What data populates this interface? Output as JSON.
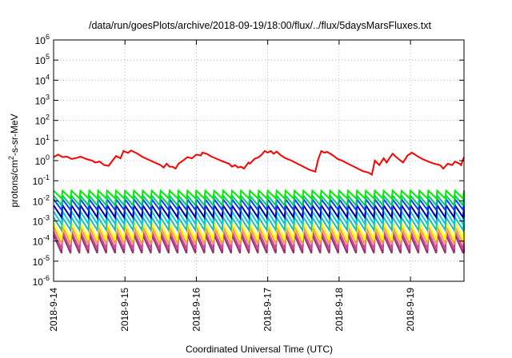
{
  "chart_data": {
    "type": "line",
    "title": "/data/run/goesPlots/archive/2018-09-19/18:00/flux/../flux/5daysMarsFluxes.txt",
    "xlabel": "Coordinated Universal Time (UTC)",
    "ylabel": "protons/cm2-s-sr-MeV",
    "yscale": "log",
    "ylim": [
      1e-06,
      1000000.0
    ],
    "yticks": [
      {
        "base": "10",
        "exp": "-6"
      },
      {
        "base": "10",
        "exp": "-5"
      },
      {
        "base": "10",
        "exp": "-4"
      },
      {
        "base": "10",
        "exp": "-3"
      },
      {
        "base": "10",
        "exp": "-2"
      },
      {
        "base": "10",
        "exp": "-1"
      },
      {
        "base": "10",
        "exp": "0"
      },
      {
        "base": "10",
        "exp": "1"
      },
      {
        "base": "10",
        "exp": "2"
      },
      {
        "base": "10",
        "exp": "3"
      },
      {
        "base": "10",
        "exp": "4"
      },
      {
        "base": "10",
        "exp": "5"
      },
      {
        "base": "10",
        "exp": "6"
      }
    ],
    "xlim": [
      "2018-09-14",
      "2018-09-19T18:00"
    ],
    "xticks": [
      "2018-9-14",
      "2018-9-15",
      "2018-9-16",
      "2018-9-17",
      "2018-9-18",
      "2018-9-19"
    ],
    "grid": true,
    "series": [
      {
        "color": "#ff0000",
        "values": [
          [
            "2018-09-14T00:00",
            1.5
          ],
          [
            "2018-09-14T01:30",
            2.0
          ],
          [
            "2018-09-14T03:00",
            1.5
          ],
          [
            "2018-09-14T04:30",
            1.6
          ],
          [
            "2018-09-14T06:00",
            1.2
          ],
          [
            "2018-09-14T08:00",
            1.4
          ],
          [
            "2018-09-14T09:00",
            1.6
          ],
          [
            "2018-09-14T11:00",
            1.2
          ],
          [
            "2018-09-14T13:00",
            1.0
          ],
          [
            "2018-09-14T14:00",
            0.8
          ],
          [
            "2018-09-14T15:30",
            0.9
          ],
          [
            "2018-09-14T17:00",
            0.6
          ],
          [
            "2018-09-14T18:30",
            0.55
          ],
          [
            "2018-09-14T20:00",
            1.1
          ],
          [
            "2018-09-14T21:00",
            1.7
          ],
          [
            "2018-09-14T22:30",
            1.3
          ],
          [
            "2018-09-14T23:30",
            3.0
          ],
          [
            "2018-09-15T01:00",
            2.4
          ],
          [
            "2018-09-15T02:00",
            3.2
          ],
          [
            "2018-09-15T04:00",
            2.3
          ],
          [
            "2018-09-15T06:00",
            1.5
          ],
          [
            "2018-09-15T08:00",
            1.1
          ],
          [
            "2018-09-15T10:00",
            0.8
          ],
          [
            "2018-09-15T12:00",
            0.6
          ],
          [
            "2018-09-15T13:00",
            0.45
          ],
          [
            "2018-09-15T14:00",
            0.7
          ],
          [
            "2018-09-15T15:00",
            0.5
          ],
          [
            "2018-09-15T16:00",
            0.5
          ],
          [
            "2018-09-15T17:00",
            0.4
          ],
          [
            "2018-09-15T18:00",
            0.7
          ],
          [
            "2018-09-15T19:30",
            1.0
          ],
          [
            "2018-09-15T21:00",
            1.5
          ],
          [
            "2018-09-15T22:30",
            1.3
          ],
          [
            "2018-09-16T00:00",
            2.0
          ],
          [
            "2018-09-16T01:30",
            1.8
          ],
          [
            "2018-09-16T02:00",
            2.5
          ],
          [
            "2018-09-16T03:30",
            2.2
          ],
          [
            "2018-09-16T05:00",
            1.6
          ],
          [
            "2018-09-16T07:00",
            1.2
          ],
          [
            "2018-09-16T09:00",
            0.9
          ],
          [
            "2018-09-16T11:00",
            0.7
          ],
          [
            "2018-09-16T12:00",
            0.5
          ],
          [
            "2018-09-16T13:00",
            0.6
          ],
          [
            "2018-09-16T14:00",
            0.45
          ],
          [
            "2018-09-16T15:00",
            0.5
          ],
          [
            "2018-09-16T16:00",
            0.4
          ],
          [
            "2018-09-16T17:30",
            0.8
          ],
          [
            "2018-09-16T18:00",
            0.7
          ],
          [
            "2018-09-16T19:30",
            1.2
          ],
          [
            "2018-09-16T21:00",
            1.5
          ],
          [
            "2018-09-16T22:00",
            2.0
          ],
          [
            "2018-09-16T23:00",
            3.0
          ],
          [
            "2018-09-17T00:00",
            2.5
          ],
          [
            "2018-09-17T01:00",
            3.0
          ],
          [
            "2018-09-17T02:00",
            2.2
          ],
          [
            "2018-09-17T03:00",
            2.8
          ],
          [
            "2018-09-17T04:30",
            1.8
          ],
          [
            "2018-09-17T06:00",
            1.3
          ],
          [
            "2018-09-17T08:00",
            1.0
          ],
          [
            "2018-09-17T10:00",
            0.7
          ],
          [
            "2018-09-17T12:00",
            0.5
          ],
          [
            "2018-09-17T14:00",
            0.35
          ],
          [
            "2018-09-17T16:00",
            0.28
          ],
          [
            "2018-09-17T17:00",
            1.2
          ],
          [
            "2018-09-17T18:00",
            3.0
          ],
          [
            "2018-09-17T19:00",
            2.5
          ],
          [
            "2018-09-17T20:00",
            2.7
          ],
          [
            "2018-09-17T22:00",
            1.8
          ],
          [
            "2018-09-17T23:30",
            1.2
          ],
          [
            "2018-09-18T01:00",
            1.0
          ],
          [
            "2018-09-18T03:00",
            0.7
          ],
          [
            "2018-09-18T05:00",
            0.5
          ],
          [
            "2018-09-18T08:00",
            0.3
          ],
          [
            "2018-09-18T10:00",
            0.25
          ],
          [
            "2018-09-18T11:00",
            0.2
          ],
          [
            "2018-09-18T12:00",
            1.0
          ],
          [
            "2018-09-18T13:30",
            0.6
          ],
          [
            "2018-09-18T15:00",
            1.3
          ],
          [
            "2018-09-18T16:00",
            0.8
          ],
          [
            "2018-09-18T17:00",
            1.4
          ],
          [
            "2018-09-18T18:00",
            2.2
          ],
          [
            "2018-09-18T19:00",
            1.6
          ],
          [
            "2018-09-18T20:00",
            1.2
          ],
          [
            "2018-09-18T21:30",
            0.8
          ],
          [
            "2018-09-18T23:00",
            1.8
          ],
          [
            "2018-09-19T00:30",
            2.5
          ],
          [
            "2018-09-19T01:30",
            2.0
          ],
          [
            "2018-09-19T02:30",
            1.6
          ],
          [
            "2018-09-19T04:00",
            1.2
          ],
          [
            "2018-09-19T06:00",
            0.9
          ],
          [
            "2018-09-19T08:00",
            0.7
          ],
          [
            "2018-09-19T10:00",
            0.6
          ],
          [
            "2018-09-19T11:00",
            0.4
          ],
          [
            "2018-09-19T12:30",
            0.7
          ],
          [
            "2018-09-19T14:00",
            0.6
          ],
          [
            "2018-09-19T15:00",
            0.9
          ],
          [
            "2018-09-19T16:30",
            0.7
          ],
          [
            "2018-09-19T17:00",
            0.6
          ],
          [
            "2018-09-19T18:00",
            1.5
          ]
        ]
      },
      {
        "color": "#00ee00",
        "peak": 0.032,
        "trough": 0.013
      },
      {
        "color": "#00cc66",
        "peak": 0.018,
        "trough": 0.006
      },
      {
        "color": "#0044ff",
        "peak": 0.012,
        "trough": 0.0035
      },
      {
        "color": "#0000aa",
        "peak": 0.006,
        "trough": 0.0015
      },
      {
        "color": "#00ccdd",
        "peak": 0.003,
        "trough": 0.0007
      },
      {
        "color": "#22bbaa",
        "peak": 0.0015,
        "trough": 0.00035
      },
      {
        "color": "#ffff00",
        "peak": 0.0008,
        "trough": 0.00011
      },
      {
        "color": "#ff9944",
        "peak": 0.0005,
        "trough": 7e-05
      },
      {
        "color": "#cc44aa",
        "peak": 0.0003,
        "trough": 4e-05
      },
      {
        "color": "#993366",
        "peak": 0.0002,
        "trough": 2.5e-05
      }
    ],
    "series_period_hours": 3
  }
}
